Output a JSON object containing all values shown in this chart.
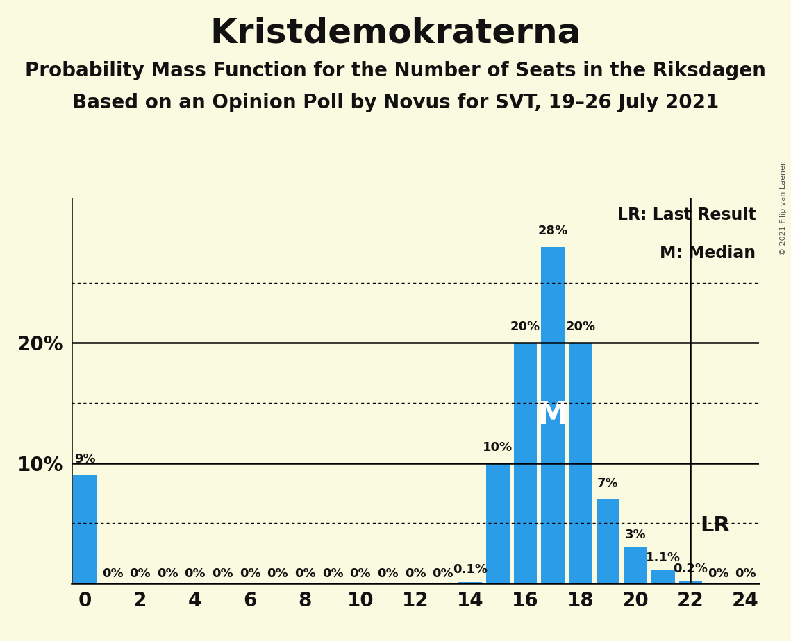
{
  "title": "Kristdemokraterna",
  "subtitle1": "Probability Mass Function for the Number of Seats in the Riksdagen",
  "subtitle2": "Based on an Opinion Poll by Novus for SVT, 19–26 July 2021",
  "copyright": "© 2021 Filip van Laenen",
  "background_color": "#FAFAE0",
  "bar_color": "#2b9de8",
  "seats": [
    0,
    1,
    2,
    3,
    4,
    5,
    6,
    7,
    8,
    9,
    10,
    11,
    12,
    13,
    14,
    15,
    16,
    17,
    18,
    19,
    20,
    21,
    22,
    23,
    24
  ],
  "probabilities": [
    9.0,
    0.0,
    0.0,
    0.0,
    0.0,
    0.0,
    0.0,
    0.0,
    0.0,
    0.0,
    0.0,
    0.0,
    0.0,
    0.0,
    0.1,
    10.0,
    20.0,
    28.0,
    20.0,
    7.0,
    3.0,
    1.1,
    0.2,
    0.0,
    0.0
  ],
  "bar_labels": [
    "9%",
    "0%",
    "0%",
    "0%",
    "0%",
    "0%",
    "0%",
    "0%",
    "0%",
    "0%",
    "0%",
    "0%",
    "0%",
    "0%",
    "0.1%",
    "10%",
    "20%",
    "28%",
    "20%",
    "7%",
    "3%",
    "1.1%",
    "0.2%",
    "0%",
    "0%"
  ],
  "median_seat": 17,
  "last_result_seat": 22,
  "xlim": [
    -0.5,
    24.5
  ],
  "ylim": [
    0,
    32
  ],
  "dotted_gridlines": [
    5,
    15,
    25
  ],
  "solid_gridlines": [
    10,
    20
  ],
  "title_fontsize": 36,
  "subtitle_fontsize": 20,
  "label_fontsize": 13
}
